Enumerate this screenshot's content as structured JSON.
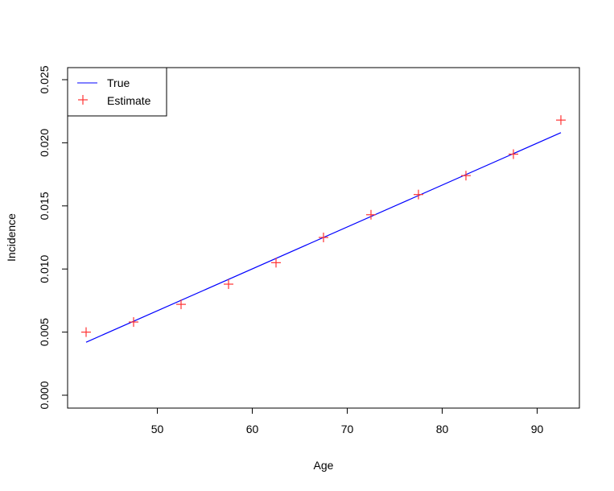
{
  "chart_data": {
    "type": "line",
    "xlabel": "Age",
    "ylabel": "Incidence",
    "xlim": [
      40,
      95
    ],
    "ylim": [
      0,
      0.025
    ],
    "x_ticks": [
      50,
      60,
      70,
      80,
      90
    ],
    "x_tick_labels": [
      "50",
      "60",
      "70",
      "80",
      "90"
    ],
    "y_ticks": [
      0,
      0.005,
      0.01,
      0.015,
      0.02,
      0.025
    ],
    "y_tick_labels": [
      "0.000",
      "0.005",
      "0.010",
      "0.015",
      "0.020",
      "0.025"
    ],
    "grid": false,
    "legend_position": "top-left",
    "series": [
      {
        "name": "True",
        "kind": "line",
        "color": "#0000ff",
        "x": [
          42.5,
          92.5
        ],
        "y": [
          0.0042,
          0.0208
        ]
      },
      {
        "name": "Estimate",
        "kind": "points",
        "marker": "plus",
        "color": "#ff3333",
        "x": [
          42.5,
          47.5,
          52.5,
          57.5,
          62.5,
          67.5,
          72.5,
          77.5,
          82.5,
          87.5,
          92.5
        ],
        "y": [
          0.005,
          0.0058,
          0.0072,
          0.0088,
          0.0105,
          0.0125,
          0.0143,
          0.0159,
          0.0174,
          0.0191,
          0.0218
        ]
      }
    ]
  }
}
